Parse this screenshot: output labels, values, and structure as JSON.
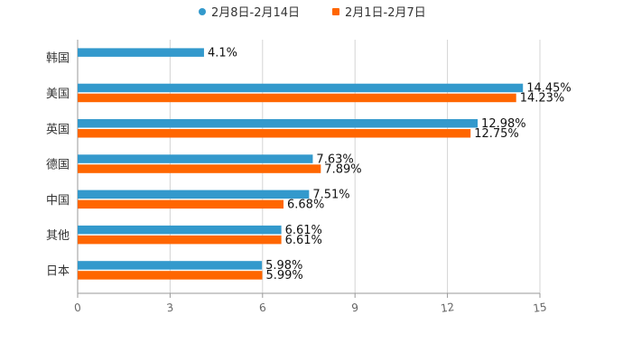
{
  "chart_data": {
    "type": "bar",
    "orientation": "horizontal",
    "categories": [
      "韩国",
      "美国",
      "英国",
      "德国",
      "中国",
      "其他",
      "日本"
    ],
    "series": [
      {
        "name": "2月8日-2月14日",
        "color": "#3399cc",
        "values": [
          4.1,
          14.45,
          12.98,
          7.63,
          7.51,
          6.61,
          5.98
        ],
        "labels": [
          "4.1%",
          "14.45%",
          "12.98%",
          "7.63%",
          "7.51%",
          "6.61%",
          "5.98%"
        ]
      },
      {
        "name": "2月1日-2月7日",
        "color": "#ff6600",
        "values": [
          null,
          14.23,
          12.75,
          7.89,
          6.68,
          6.61,
          5.99
        ],
        "labels": [
          "",
          "14.23%",
          "12.75%",
          "7.89%",
          "6.68%",
          "6.61%",
          "5.99%"
        ]
      }
    ],
    "xlim": [
      0,
      15
    ],
    "xticks": [
      0,
      3,
      6,
      9,
      12,
      15
    ],
    "xtick_labels": [
      "0",
      "3",
      "6",
      "9",
      "12",
      "15"
    ],
    "grid": true,
    "legend_position": "top-center"
  }
}
